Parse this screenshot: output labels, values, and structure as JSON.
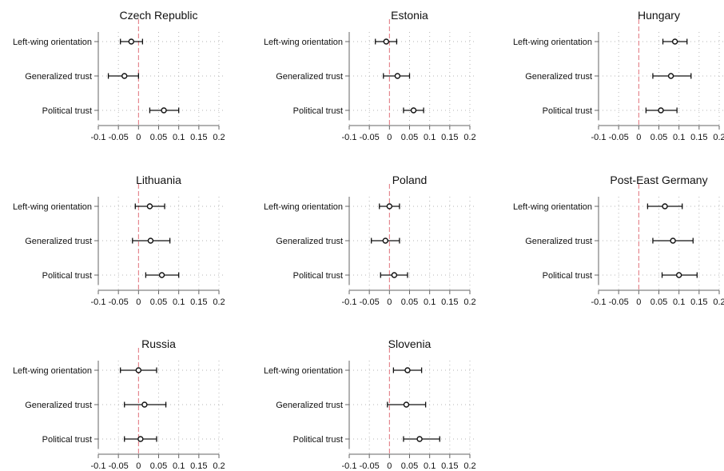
{
  "chart_data": [
    {
      "type": "scatter",
      "title": "Czech Republic",
      "xlabel": "",
      "ylabel": "",
      "xlim": [
        -0.1,
        0.2
      ],
      "xticks": [
        "-0.1",
        "-0.05",
        "0",
        "0.05",
        "0.1",
        "0.15",
        "0.2"
      ],
      "reference_line": 0,
      "categories": [
        "Left-wing orientation",
        "Generalized trust",
        "Political trust"
      ],
      "estimates": [
        -0.018,
        -0.035,
        0.063
      ],
      "ci_low": [
        -0.045,
        -0.075,
        0.028
      ],
      "ci_high": [
        0.01,
        0.0,
        0.1
      ]
    },
    {
      "type": "scatter",
      "title": "Estonia",
      "xlabel": "",
      "ylabel": "",
      "xlim": [
        -0.1,
        0.2
      ],
      "xticks": [
        "-0.1",
        "-0.05",
        "0",
        "0.05",
        "0.1",
        "0.15",
        "0.2"
      ],
      "reference_line": 0,
      "categories": [
        "Left-wing orientation",
        "Generalized trust",
        "Political trust"
      ],
      "estimates": [
        -0.008,
        0.02,
        0.06
      ],
      "ci_low": [
        -0.035,
        -0.015,
        0.035
      ],
      "ci_high": [
        0.018,
        0.05,
        0.085
      ]
    },
    {
      "type": "scatter",
      "title": "Hungary",
      "xlabel": "",
      "ylabel": "",
      "xlim": [
        -0.1,
        0.2
      ],
      "xticks": [
        "-0.1",
        "-0.05",
        "0",
        "0.05",
        "0.1",
        "0.15",
        "0.2"
      ],
      "reference_line": 0,
      "categories": [
        "Left-wing orientation",
        "Generalized trust",
        "Political trust"
      ],
      "estimates": [
        0.09,
        0.08,
        0.055
      ],
      "ci_low": [
        0.06,
        0.035,
        0.018
      ],
      "ci_high": [
        0.12,
        0.13,
        0.095
      ]
    },
    {
      "type": "scatter",
      "title": "Lithuania",
      "xlabel": "",
      "ylabel": "",
      "xlim": [
        -0.1,
        0.2
      ],
      "xticks": [
        "-0.1",
        "-0.05",
        "0",
        "0.05",
        "0.1",
        "0.15",
        "0.2"
      ],
      "reference_line": 0,
      "categories": [
        "Left-wing orientation",
        "Generalized trust",
        "Political trust"
      ],
      "estimates": [
        0.028,
        0.03,
        0.058
      ],
      "ci_low": [
        -0.008,
        -0.015,
        0.018
      ],
      "ci_high": [
        0.065,
        0.078,
        0.1
      ]
    },
    {
      "type": "scatter",
      "title": "Poland",
      "xlabel": "",
      "ylabel": "",
      "xlim": [
        -0.1,
        0.2
      ],
      "xticks": [
        "-0.1",
        "-0.05",
        "0",
        "0.05",
        "0.1",
        "0.15",
        "0.2"
      ],
      "reference_line": 0,
      "categories": [
        "Left-wing orientation",
        "Generalized trust",
        "Political trust"
      ],
      "estimates": [
        0.0,
        -0.01,
        0.012
      ],
      "ci_low": [
        -0.025,
        -0.045,
        -0.022
      ],
      "ci_high": [
        0.025,
        0.025,
        0.045
      ]
    },
    {
      "type": "scatter",
      "title": "Post-East Germany",
      "xlabel": "",
      "ylabel": "",
      "xlim": [
        -0.1,
        0.2
      ],
      "xticks": [
        "-0.1",
        "-0.05",
        "0",
        "0.05",
        "0.1",
        "0.15",
        "0.2"
      ],
      "reference_line": 0,
      "categories": [
        "Left-wing orientation",
        "Generalized trust",
        "Political trust"
      ],
      "estimates": [
        0.065,
        0.085,
        0.1
      ],
      "ci_low": [
        0.022,
        0.035,
        0.058
      ],
      "ci_high": [
        0.108,
        0.135,
        0.145
      ]
    },
    {
      "type": "scatter",
      "title": "Russia",
      "xlabel": "",
      "ylabel": "",
      "xlim": [
        -0.1,
        0.2
      ],
      "xticks": [
        "-0.1",
        "-0.05",
        "0",
        "0.05",
        "0.1",
        "0.15",
        "0.2"
      ],
      "reference_line": 0,
      "categories": [
        "Left-wing orientation",
        "Generalized trust",
        "Political trust"
      ],
      "estimates": [
        0.0,
        0.015,
        0.005
      ],
      "ci_low": [
        -0.045,
        -0.035,
        -0.035
      ],
      "ci_high": [
        0.045,
        0.068,
        0.045
      ]
    },
    {
      "type": "scatter",
      "title": "Slovenia",
      "xlabel": "",
      "ylabel": "",
      "xlim": [
        -0.1,
        0.2
      ],
      "xticks": [
        "-0.1",
        "-0.05",
        "0",
        "0.05",
        "0.1",
        "0.15",
        "0.2"
      ],
      "reference_line": 0,
      "categories": [
        "Left-wing orientation",
        "Generalized trust",
        "Political trust"
      ],
      "estimates": [
        0.045,
        0.042,
        0.075
      ],
      "ci_low": [
        0.01,
        -0.005,
        0.035
      ],
      "ci_high": [
        0.08,
        0.09,
        0.125
      ]
    }
  ],
  "colors": {
    "point_stroke": "#111111",
    "point_fill": "#ffffff",
    "ci_line": "#111111",
    "axis": "#666666",
    "grid": "#b5b5b5",
    "reference_line": "#e0707a",
    "text": "#111111"
  }
}
